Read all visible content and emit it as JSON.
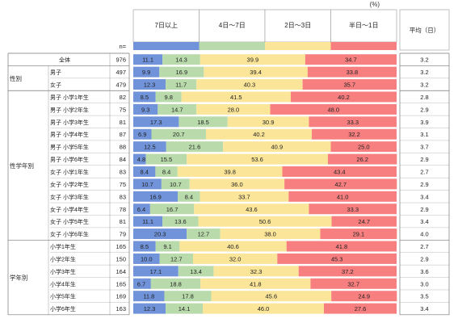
{
  "chart_data": {
    "type": "bar",
    "stacked": true,
    "orientation": "horizontal",
    "unit_label": "(%)",
    "n_label": "n=",
    "avg_header": "平均（日）",
    "legend": [
      "7日以上",
      "4日～7日",
      "2日～3日",
      "半日～1日"
    ],
    "colors": [
      "#7093d9",
      "#b9dbab",
      "#fbe599",
      "#f77f7f"
    ],
    "groups": [
      {
        "label": "",
        "rows": [
          {
            "label": "全体",
            "n": "976",
            "values": [
              11.1,
              14.3,
              39.9,
              34.7
            ],
            "avg": "3.2"
          }
        ]
      },
      {
        "label": "性別",
        "rows": [
          {
            "label": "男子",
            "n": "497",
            "values": [
              9.9,
              16.9,
              39.4,
              33.8
            ],
            "avg": "3.2"
          },
          {
            "label": "女子",
            "n": "479",
            "values": [
              12.3,
              11.7,
              40.3,
              35.7
            ],
            "avg": "3.2"
          }
        ]
      },
      {
        "label": "性学年別",
        "rows": [
          {
            "label": "男子  小学1年生",
            "n": "82",
            "values": [
              8.5,
              9.8,
              41.5,
              40.2
            ],
            "avg": "2.8"
          },
          {
            "label": "男子  小学2年生",
            "n": "75",
            "values": [
              9.3,
              14.7,
              28.0,
              48.0
            ],
            "avg": "2.9"
          },
          {
            "label": "男子  小学3年生",
            "n": "81",
            "values": [
              17.3,
              18.5,
              30.9,
              33.3
            ],
            "avg": "3.9"
          },
          {
            "label": "男子  小学4年生",
            "n": "87",
            "values": [
              6.9,
              20.7,
              40.2,
              32.2
            ],
            "avg": "3.1"
          },
          {
            "label": "男子  小学5年生",
            "n": "88",
            "values": [
              12.5,
              21.6,
              40.9,
              25.0
            ],
            "avg": "3.7"
          },
          {
            "label": "男子  小学6年生",
            "n": "84",
            "values": [
              4.8,
              15.5,
              53.6,
              26.2
            ],
            "avg": "2.9"
          },
          {
            "label": "女子  小学1年生",
            "n": "83",
            "values": [
              8.4,
              8.4,
              39.8,
              43.4
            ],
            "avg": "2.7"
          },
          {
            "label": "女子  小学2年生",
            "n": "75",
            "values": [
              10.7,
              10.7,
              36.0,
              42.7
            ],
            "avg": "2.9"
          },
          {
            "label": "女子  小学3年生",
            "n": "83",
            "values": [
              16.9,
              8.4,
              33.7,
              41.0
            ],
            "avg": "3.4"
          },
          {
            "label": "女子  小学4年生",
            "n": "78",
            "values": [
              6.4,
              16.7,
              43.6,
              33.3
            ],
            "avg": "2.9"
          },
          {
            "label": "女子  小学5年生",
            "n": "81",
            "values": [
              11.1,
              13.6,
              50.6,
              24.7
            ],
            "avg": "3.4"
          },
          {
            "label": "女子  小学6年生",
            "n": "79",
            "values": [
              20.3,
              12.7,
              38.0,
              29.1
            ],
            "avg": "4.0"
          }
        ]
      },
      {
        "label": "学年別",
        "rows": [
          {
            "label": "小学1年生",
            "n": "165",
            "values": [
              8.5,
              9.1,
              40.6,
              41.8
            ],
            "avg": "2.7"
          },
          {
            "label": "小学2年生",
            "n": "150",
            "values": [
              10.0,
              12.7,
              32.0,
              45.3
            ],
            "avg": "2.9"
          },
          {
            "label": "小学3年生",
            "n": "164",
            "values": [
              17.1,
              13.4,
              32.3,
              37.2
            ],
            "avg": "3.6"
          },
          {
            "label": "小学4年生",
            "n": "165",
            "values": [
              6.7,
              18.8,
              41.8,
              32.7
            ],
            "avg": "3.0"
          },
          {
            "label": "小学5年生",
            "n": "169",
            "values": [
              11.8,
              17.8,
              45.6,
              24.9
            ],
            "avg": "3.5"
          },
          {
            "label": "小学6年生",
            "n": "163",
            "values": [
              12.3,
              14.1,
              46.0,
              27.6
            ],
            "avg": "3.4"
          }
        ]
      }
    ]
  }
}
